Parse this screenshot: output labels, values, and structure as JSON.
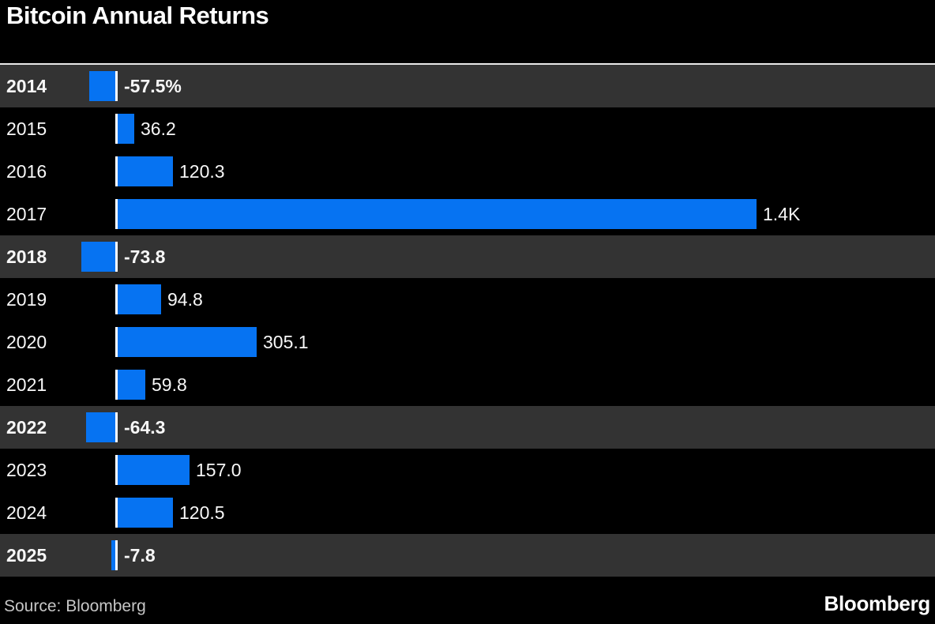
{
  "title": "Bitcoin Annual Returns",
  "source": {
    "label": "Source:",
    "value": "Bloomberg"
  },
  "brand": "Bloomberg",
  "colors": {
    "background": "#000000",
    "bar_blue": "#0673f2",
    "negative_row_background": "#333333",
    "positive_row_background": "#000000",
    "baseline_tick": "#ffffff",
    "top_rule": "#e8e8e8",
    "label_text": "#f7f7f7",
    "source_text": "#c6c6c6"
  },
  "chart_data": {
    "type": "bar",
    "orientation": "horizontal",
    "title": "Bitcoin Annual Returns",
    "unit": "percent",
    "baseline_value": 0,
    "categories": [
      "2014",
      "2015",
      "2016",
      "2017",
      "2018",
      "2019",
      "2020",
      "2021",
      "2022",
      "2023",
      "2024",
      "2025"
    ],
    "values": [
      -57.5,
      36.2,
      120.3,
      1400,
      -73.8,
      94.8,
      305.1,
      59.8,
      -64.3,
      157.0,
      120.5,
      -7.8
    ],
    "value_labels": [
      "-57.5%",
      "36.2",
      "120.3",
      "1.4K",
      "-73.8",
      "94.8",
      "305.1",
      "59.8",
      "-64.3",
      "157.0",
      "120.5",
      "-7.8"
    ],
    "xlim": [
      -74,
      1400
    ],
    "negative_rows_highlighted": true,
    "grid": false,
    "legend": false
  }
}
